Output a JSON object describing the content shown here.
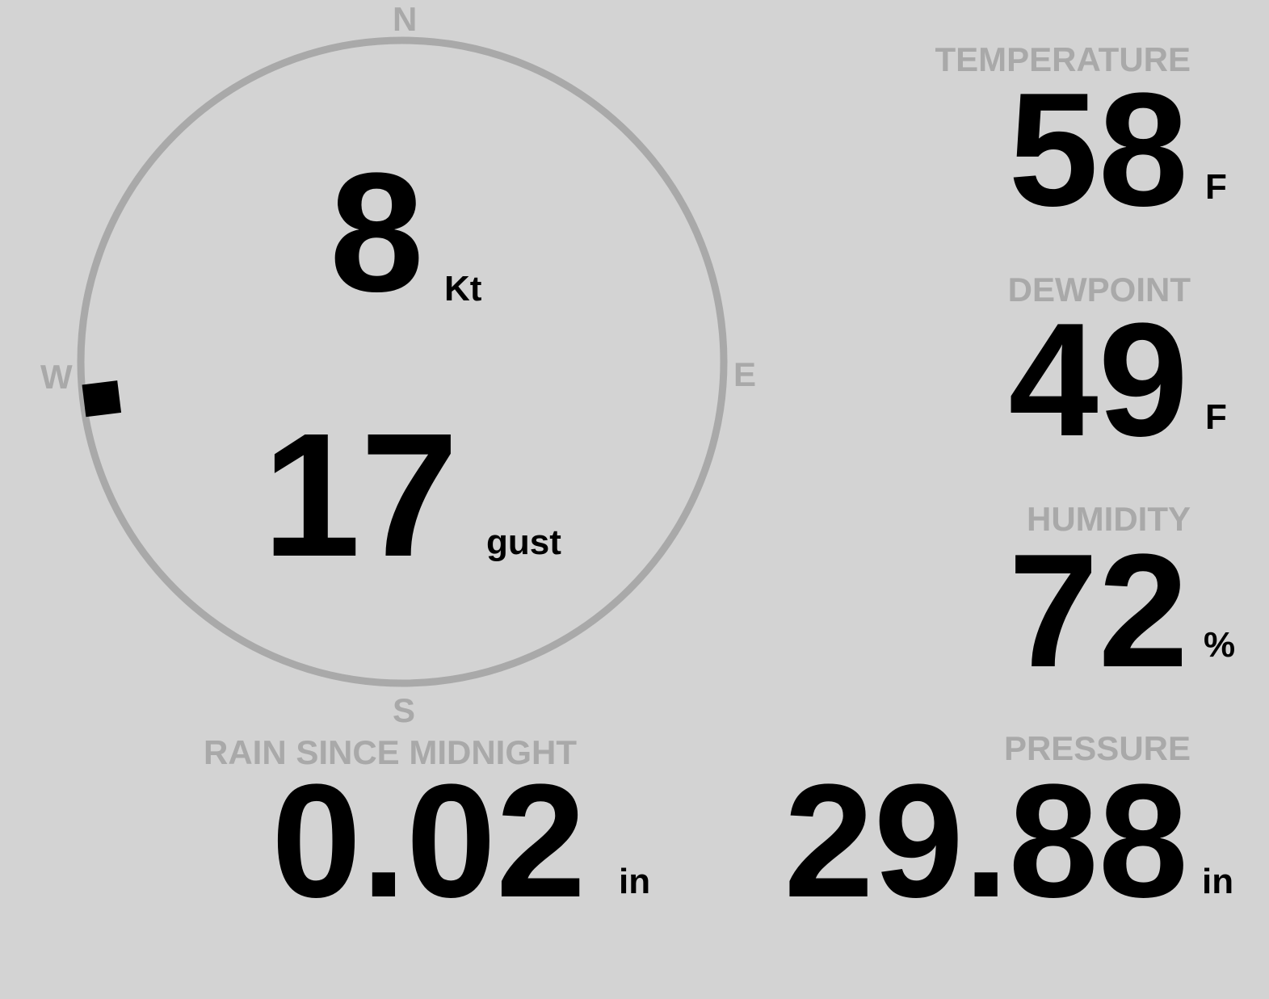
{
  "wind": {
    "compass": {
      "n": "N",
      "e": "E",
      "s": "S",
      "w": "W"
    },
    "direction_deg": 263,
    "speed": "8",
    "speed_unit": "Kt",
    "gust": "17",
    "gust_unit": "gust"
  },
  "temperature": {
    "label": "TEMPERATURE",
    "value": "58",
    "unit": "F"
  },
  "dewpoint": {
    "label": "DEWPOINT",
    "value": "49",
    "unit": "F"
  },
  "humidity": {
    "label": "HUMIDITY",
    "value": "72",
    "unit": "%"
  },
  "rain": {
    "label": "RAIN SINCE MIDNIGHT",
    "value": "0.02",
    "unit": "in"
  },
  "pressure": {
    "label": "PRESSURE",
    "value": "29.88",
    "unit": "in"
  },
  "colors": {
    "background": "#d3d3d3",
    "label": "#a9a9a9",
    "value": "#000000"
  }
}
